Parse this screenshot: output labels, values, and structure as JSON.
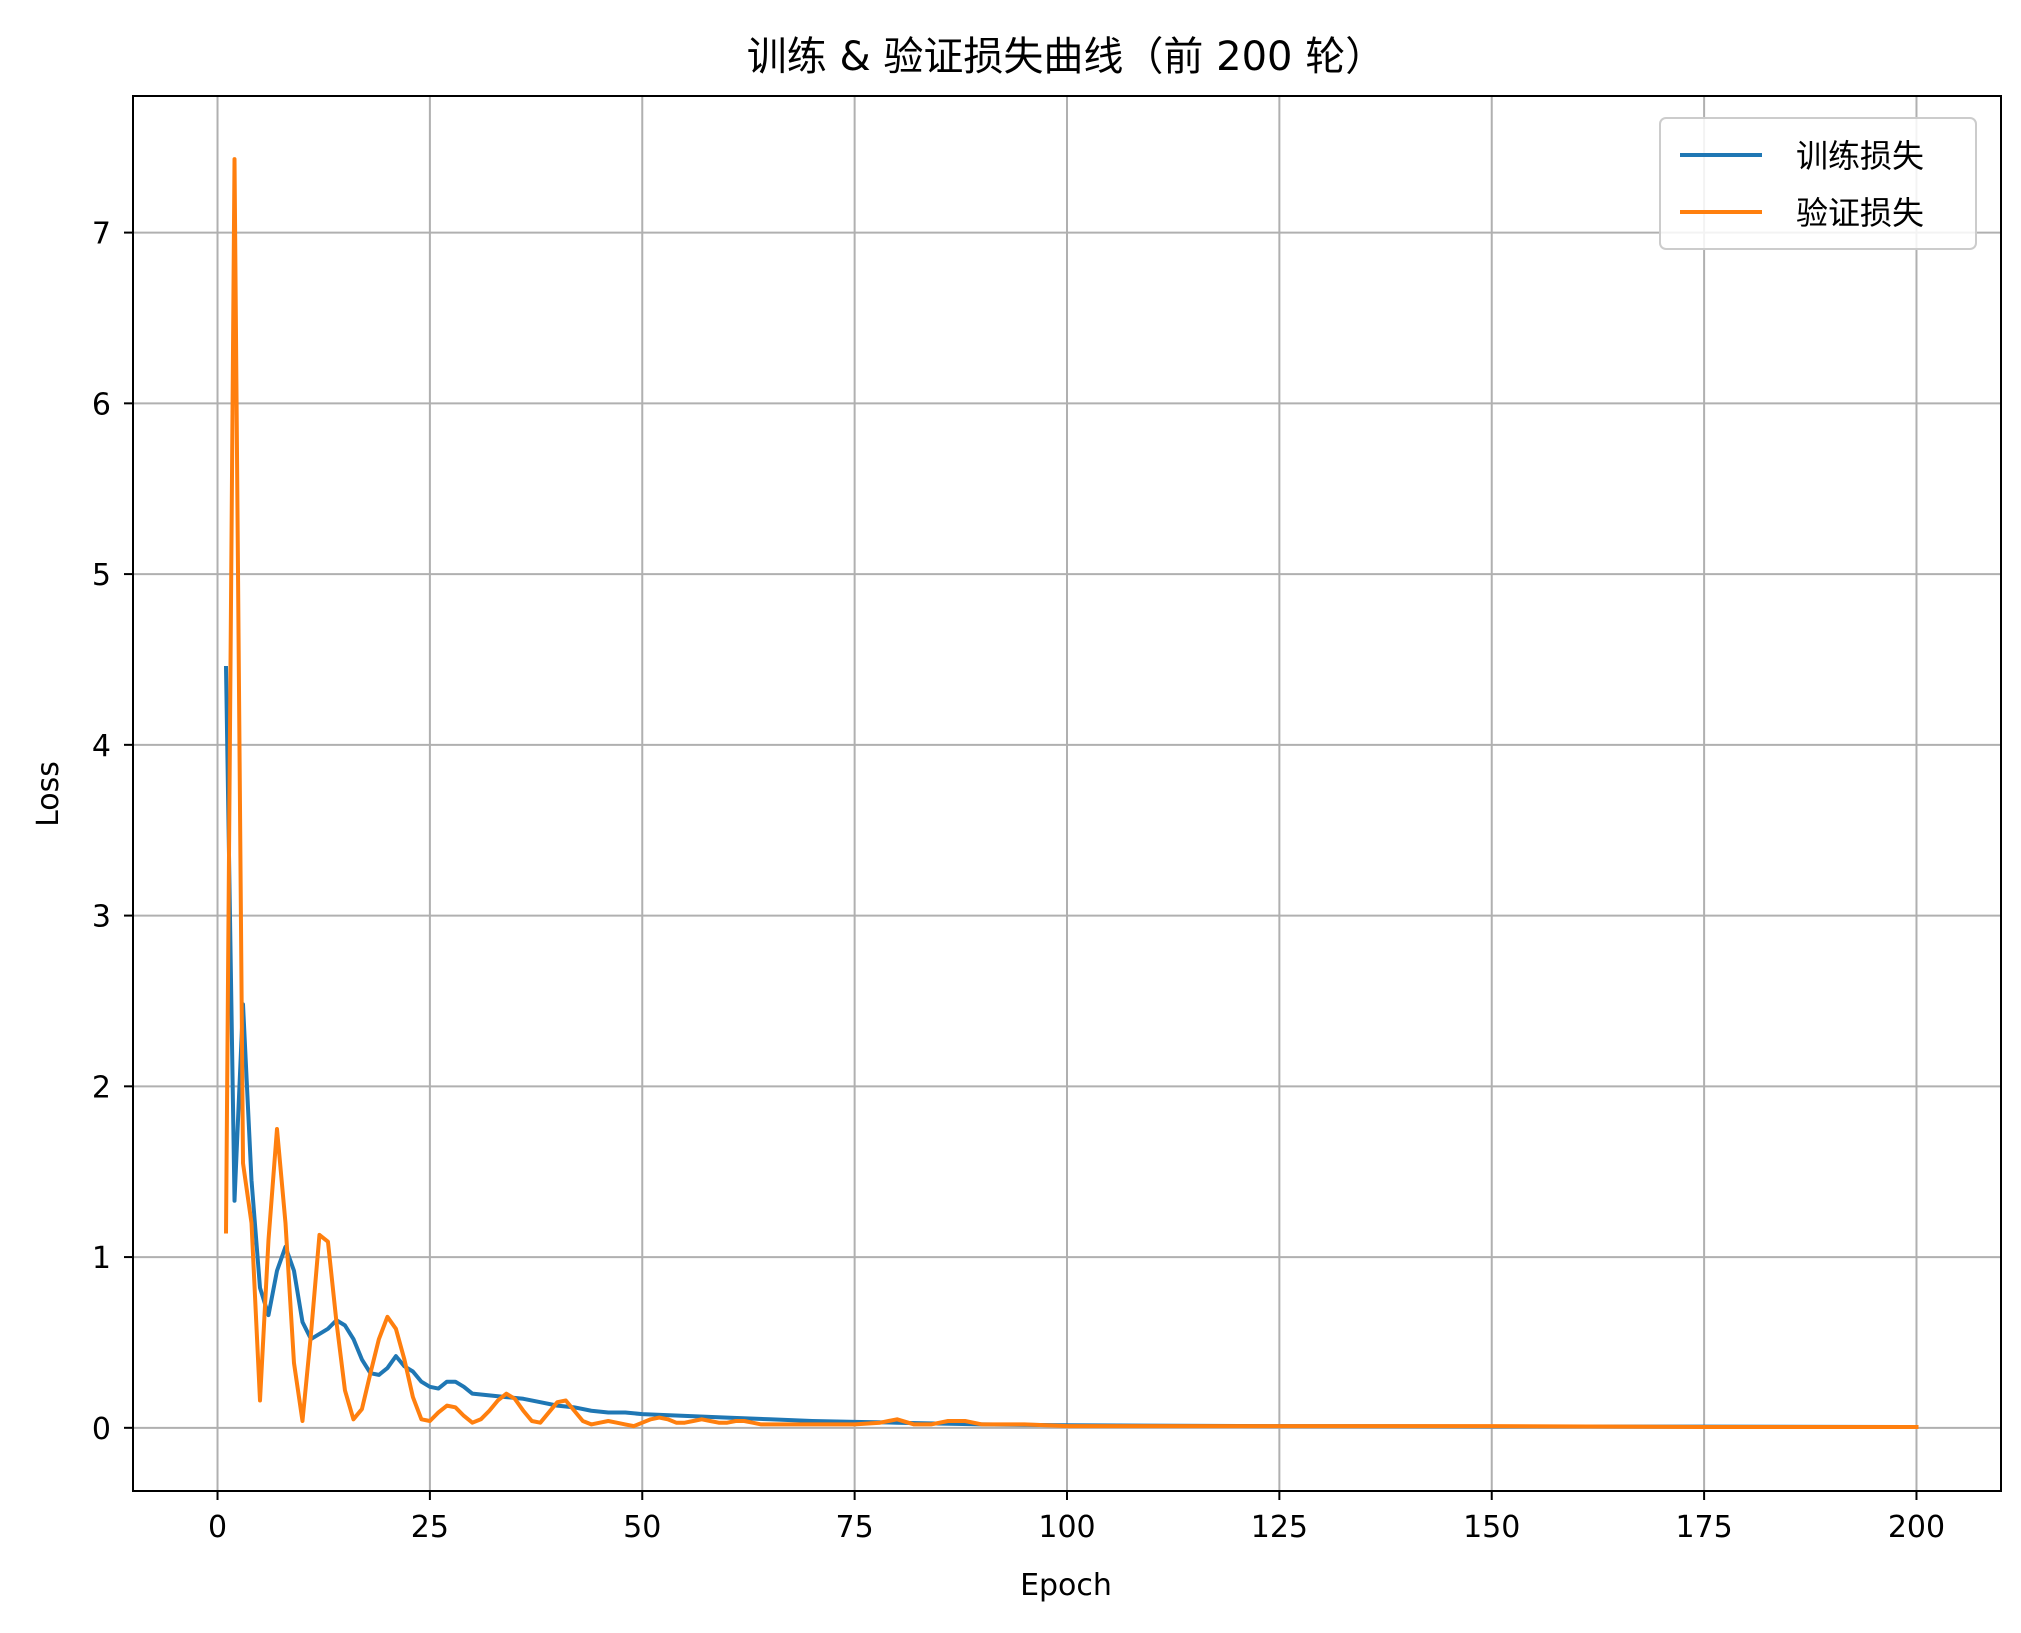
{
  "chart_data": {
    "type": "line",
    "title": "训练 & 验证损失曲线（前 200 轮）",
    "xlabel": "Epoch",
    "ylabel": "Loss",
    "xlim": [
      -9.95,
      209.95
    ],
    "ylim": [
      -0.37,
      7.8
    ],
    "xticks": [
      0,
      25,
      50,
      75,
      100,
      125,
      150,
      175,
      200
    ],
    "yticks": [
      0,
      1,
      2,
      3,
      4,
      5,
      6,
      7
    ],
    "grid": true,
    "legend_position": "top-right",
    "series": [
      {
        "name": "训练损失",
        "color": "#1f77b4",
        "x": [
          1,
          2,
          3,
          4,
          5,
          6,
          7,
          8,
          9,
          10,
          11,
          12,
          13,
          14,
          15,
          16,
          17,
          18,
          19,
          20,
          21,
          22,
          23,
          24,
          25,
          26,
          27,
          28,
          29,
          30,
          32,
          34,
          36,
          38,
          40,
          42,
          44,
          46,
          48,
          50,
          55,
          60,
          65,
          70,
          75,
          80,
          90,
          100,
          125,
          150,
          175,
          200
        ],
        "y": [
          4.45,
          1.33,
          2.48,
          1.45,
          0.82,
          0.66,
          0.92,
          1.06,
          0.92,
          0.62,
          0.52,
          0.55,
          0.58,
          0.63,
          0.6,
          0.52,
          0.4,
          0.32,
          0.31,
          0.35,
          0.42,
          0.36,
          0.33,
          0.27,
          0.24,
          0.23,
          0.27,
          0.27,
          0.24,
          0.2,
          0.19,
          0.18,
          0.17,
          0.15,
          0.13,
          0.12,
          0.1,
          0.09,
          0.09,
          0.08,
          0.07,
          0.06,
          0.05,
          0.04,
          0.035,
          0.03,
          0.02,
          0.015,
          0.01,
          0.008,
          0.007,
          0.005
        ]
      },
      {
        "name": "验证损失",
        "color": "#ff7f0e",
        "x": [
          1,
          2,
          3,
          4,
          5,
          6,
          7,
          8,
          9,
          10,
          11,
          12,
          13,
          14,
          15,
          16,
          17,
          18,
          19,
          20,
          21,
          22,
          23,
          24,
          25,
          26,
          27,
          28,
          29,
          30,
          31,
          32,
          33,
          34,
          35,
          36,
          37,
          38,
          39,
          40,
          41,
          42,
          43,
          44,
          45,
          46,
          47,
          48,
          49,
          50,
          51,
          52,
          53,
          54,
          55,
          56,
          57,
          58,
          59,
          60,
          61,
          62,
          63,
          64,
          65,
          70,
          75,
          78,
          80,
          82,
          84,
          86,
          88,
          90,
          95,
          100,
          125,
          150,
          175,
          200
        ],
        "y": [
          1.15,
          7.43,
          1.55,
          1.2,
          0.16,
          1.1,
          1.75,
          1.2,
          0.38,
          0.04,
          0.55,
          1.13,
          1.09,
          0.62,
          0.22,
          0.05,
          0.11,
          0.32,
          0.52,
          0.65,
          0.58,
          0.4,
          0.18,
          0.05,
          0.04,
          0.09,
          0.13,
          0.12,
          0.07,
          0.03,
          0.05,
          0.1,
          0.16,
          0.2,
          0.17,
          0.1,
          0.04,
          0.03,
          0.09,
          0.15,
          0.16,
          0.1,
          0.04,
          0.02,
          0.03,
          0.04,
          0.03,
          0.02,
          0.01,
          0.03,
          0.05,
          0.06,
          0.05,
          0.03,
          0.03,
          0.04,
          0.05,
          0.04,
          0.03,
          0.03,
          0.04,
          0.04,
          0.03,
          0.02,
          0.02,
          0.02,
          0.02,
          0.03,
          0.05,
          0.02,
          0.02,
          0.04,
          0.04,
          0.02,
          0.02,
          0.01,
          0.01,
          0.01,
          0.005,
          0.005
        ]
      }
    ]
  }
}
